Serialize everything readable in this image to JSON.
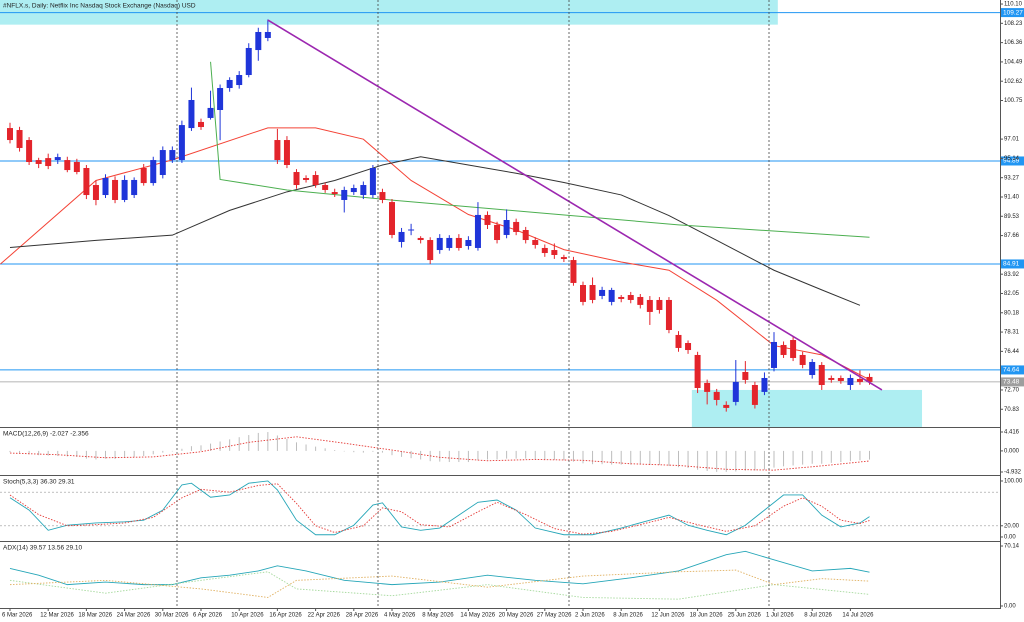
{
  "chart_data": [
    {
      "type": "candlestick",
      "title": "#NFLX.s, Daily:  Netflix Inc Nasdaq Stock Exchange (Nasdaq) USD",
      "categories": [
        "6 Mar 2026",
        null,
        null,
        null,
        "12 Mar 2026",
        null,
        null,
        null,
        "18 Mar 2026",
        null,
        null,
        null,
        "24 Mar 2026",
        null,
        null,
        null,
        "30 Mar 2026",
        null,
        null,
        null,
        "6 Apr 2026",
        null,
        null,
        null,
        "10 Apr 2026",
        null,
        null,
        null,
        "16 Apr 2026",
        null,
        null,
        null,
        "22 Apr 2026",
        null,
        null,
        null,
        "28 Apr 2026",
        null,
        null,
        null,
        "4 May 2026",
        null,
        null,
        null,
        "8 May 2026",
        null,
        null,
        null,
        "14 May 2026",
        null,
        null,
        null,
        "20 May 2026",
        null,
        null,
        null,
        "27 May 2026",
        null,
        null,
        null,
        "2 Jun 2026",
        null,
        null,
        null,
        "8 Jun 2026",
        null,
        null,
        null,
        "12 Jun 2026",
        null,
        null,
        null,
        "18 Jun 2026",
        null,
        null,
        null,
        "25 Jun 2026",
        null,
        null,
        null,
        "1 Jul 2026",
        null,
        null,
        null,
        "8 Jul 2026",
        null,
        null,
        null,
        "14 Jul 2026",
        null,
        null
      ],
      "open": [
        98.08,
        97.89,
        96.92,
        94.98,
        95.17,
        94.98,
        94.98,
        94.79,
        94.21,
        92.56,
        91.59,
        93.05,
        91.11,
        91.59,
        94.21,
        92.75,
        93.53,
        94.98,
        94.98,
        98.08,
        98.67,
        99.06,
        99.83,
        101.96,
        102.25,
        103.22,
        105.64,
        106.81,
        96.92,
        96.92,
        93.82,
        93.24,
        93.53,
        92.56,
        91.88,
        91.11,
        91.88,
        91.59,
        91.59,
        91.88,
        90.91,
        87.04,
        88.2,
        87.43,
        87.23,
        86.26,
        86.46,
        87.43,
        86.65,
        86.46,
        89.66,
        88.69,
        87.72,
        88.98,
        88.2,
        87.23,
        86.46,
        86.26,
        85.58,
        85.29,
        82.87,
        82.87,
        81.81,
        81.23,
        81.71,
        81.9,
        81.71,
        81.42,
        81.42,
        81.42,
        78.03,
        77.25,
        76.09,
        73.38,
        72.51,
        71.25,
        71.54,
        74.44,
        73.18,
        72.51,
        74.83,
        77.06,
        77.54,
        76.09,
        74.15,
        75.12,
        73.86,
        73.86,
        73.18,
        73.76,
        73.96
      ],
      "high": [
        98.6,
        98.2,
        97.2,
        95.2,
        95.6,
        95.6,
        95.3,
        95.1,
        94.5,
        93.0,
        93.6,
        93.4,
        93.5,
        93.3,
        94.6,
        95.3,
        96.3,
        96.3,
        98.8,
        102.0,
        99.0,
        101.7,
        102.3,
        103.0,
        103.6,
        106.3,
        107.8,
        108.6,
        98.0,
        97.3,
        94.1,
        93.5,
        93.9,
        92.8,
        92.2,
        92.4,
        92.6,
        92.9,
        94.5,
        92.2,
        91.2,
        88.4,
        88.8,
        87.6,
        87.5,
        87.8,
        87.7,
        87.8,
        87.6,
        90.9,
        90.0,
        89.0,
        90.2,
        89.3,
        88.5,
        87.5,
        86.8,
        86.9,
        85.8,
        85.6,
        83.2,
        83.6,
        82.7,
        82.6,
        81.9,
        82.2,
        82.0,
        81.8,
        81.7,
        81.7,
        78.4,
        77.5,
        76.4,
        73.7,
        72.8,
        71.6,
        75.6,
        75.5,
        73.5,
        74.4,
        78.3,
        77.4,
        77.9,
        76.4,
        75.7,
        75.4,
        74.1,
        74.1,
        74.2,
        74.6,
        74.3
      ],
      "low": [
        96.6,
        95.8,
        94.5,
        94.2,
        94.1,
        94.6,
        93.8,
        93.6,
        91.2,
        90.6,
        91.3,
        90.8,
        90.9,
        91.3,
        92.5,
        92.5,
        93.2,
        94.7,
        94.7,
        97.8,
        97.9,
        98.9,
        96.9,
        101.6,
        101.9,
        103.0,
        104.6,
        106.5,
        94.6,
        94.2,
        92.2,
        92.8,
        92.3,
        91.8,
        91.4,
        89.9,
        91.6,
        91.2,
        91.3,
        90.8,
        87.4,
        86.5,
        87.7,
        86.9,
        84.9,
        85.9,
        86.2,
        86.2,
        86.3,
        86.2,
        88.3,
        86.9,
        87.4,
        87.7,
        86.9,
        86.4,
        85.6,
        85.4,
        85.1,
        82.8,
        80.9,
        81.1,
        81.5,
        80.9,
        81.2,
        81.1,
        80.6,
        79.0,
        80.1,
        78.2,
        76.4,
        76.2,
        72.4,
        71.3,
        71.2,
        70.6,
        71.2,
        73.3,
        70.9,
        72.2,
        74.5,
        75.8,
        75.5,
        74.8,
        73.8,
        72.7,
        73.4,
        73.3,
        72.7,
        73.2,
        73.2
      ],
      "close": [
        96.92,
        96.15,
        94.79,
        94.6,
        94.4,
        95.27,
        94.01,
        93.82,
        91.59,
        91.11,
        93.24,
        91.11,
        93.05,
        93.05,
        92.75,
        94.98,
        95.95,
        95.95,
        98.37,
        100.8,
        98.18,
        100.03,
        101.96,
        102.74,
        103.22,
        105.84,
        107.39,
        107.39,
        94.98,
        94.5,
        92.56,
        93.05,
        92.56,
        92.08,
        91.69,
        92.08,
        92.27,
        92.56,
        94.21,
        91.11,
        87.72,
        88.01,
        88.25,
        87.23,
        85.29,
        87.43,
        87.43,
        86.46,
        87.23,
        89.66,
        88.69,
        87.23,
        89.17,
        88.01,
        87.23,
        86.75,
        85.97,
        85.78,
        85.39,
        83.07,
        81.23,
        81.42,
        82.39,
        82.39,
        81.52,
        81.42,
        80.94,
        80.26,
        80.45,
        78.51,
        76.77,
        76.57,
        72.89,
        72.51,
        71.73,
        70.96,
        73.48,
        73.67,
        71.25,
        73.86,
        77.35,
        76.09,
        75.8,
        75.12,
        75.41,
        73.18,
        73.67,
        73.57,
        73.86,
        73.48,
        73.48
      ],
      "up_color": "#1f35d9",
      "down_color": "#e3242b",
      "ylim": [
        69.11,
        110.49
      ],
      "yticks": [
        {
          "value": 110.1,
          "label": "110.10"
        },
        {
          "value": 108.23,
          "label": "108.23"
        },
        {
          "value": 106.36,
          "label": "106.36"
        },
        {
          "value": 104.49,
          "label": "104.49"
        },
        {
          "value": 102.62,
          "label": "102.62"
        },
        {
          "value": 100.75,
          "label": "100.75"
        },
        {
          "value": 97.01,
          "label": "97.01"
        },
        {
          "value": 95.14,
          "label": "95.14"
        },
        {
          "value": 93.27,
          "label": "93.27"
        },
        {
          "value": 91.4,
          "label": "91.40"
        },
        {
          "value": 89.53,
          "label": "89.53"
        },
        {
          "value": 87.66,
          "label": "87.66"
        },
        {
          "value": 83.92,
          "label": "83.92"
        },
        {
          "value": 82.05,
          "label": "82.05"
        },
        {
          "value": 80.18,
          "label": "80.18"
        },
        {
          "value": 78.31,
          "label": "78.31"
        },
        {
          "value": 76.44,
          "label": "76.44"
        },
        {
          "value": 72.7,
          "label": "72.70"
        },
        {
          "value": 70.83,
          "label": "70.83"
        }
      ],
      "zones": [
        {
          "x": [
            -1.05,
            80.4
          ],
          "y": [
            110.49,
            108.1
          ]
        },
        {
          "x": [
            71.4,
            95.5
          ],
          "y": [
            72.7,
            69.11
          ]
        }
      ],
      "zone_color": "#aeeef2",
      "hlines": [
        109.27,
        94.89,
        84.91,
        74.64
      ],
      "hline_color": "#2196f3",
      "current_price": 73.48,
      "current_color": "#9e9e9e",
      "lines": [
        {
          "color": "#f44336",
          "x": [
            -1,
            9,
            17,
            27,
            32,
            37,
            42,
            48,
            53,
            58,
            64,
            69,
            74,
            80,
            85,
            90
          ],
          "values": [
            84.9,
            93.0,
            95.0,
            98.1,
            98.1,
            97.0,
            93.0,
            89.7,
            88.2,
            86.3,
            85.1,
            84.3,
            81.4,
            77.0,
            76.1,
            73.7
          ]
        },
        {
          "color": "#333333",
          "x": [
            0,
            9,
            17,
            23,
            29,
            34,
            39,
            43,
            48,
            53,
            58,
            64,
            69,
            74,
            80,
            85,
            89
          ],
          "values": [
            86.5,
            87.2,
            87.7,
            90.1,
            91.9,
            93.0,
            94.5,
            95.3,
            94.5,
            93.7,
            92.8,
            91.6,
            89.6,
            87.2,
            84.3,
            82.4,
            80.9
          ]
        },
        {
          "color": "#4caf50",
          "x": [
            21,
            22,
            29,
            40,
            55,
            70,
            90
          ],
          "values": [
            104.5,
            93.1,
            92.08,
            91.1,
            89.9,
            88.7,
            87.5
          ]
        }
      ],
      "trendline": {
        "color": "#9c27b0",
        "x": [
          27,
          91.3
        ],
        "values": [
          108.55,
          72.7
        ]
      }
    },
    {
      "type": "macd",
      "title": "MACD(12,26,9) -2.027 -2.356",
      "values": [
        -0.3,
        -0.5,
        -0.8,
        -1.0,
        -1.1,
        -1.2,
        -1.3,
        -1.4,
        -1.8,
        -2.0,
        -1.8,
        -1.9,
        -1.6,
        -1.4,
        -1.2,
        -0.8,
        -0.4,
        0,
        0.5,
        1.1,
        1.3,
        1.7,
        2.2,
        2.7,
        3.2,
        3.7,
        4.2,
        4.4,
        3.6,
        2.8,
        2.0,
        1.5,
        1.0,
        0.6,
        0.2,
        -0.1,
        -0.3,
        -0.4,
        -0.2,
        -0.4,
        -1.0,
        -1.4,
        -1.7,
        -2.0,
        -2.4,
        -2.5,
        -2.6,
        -2.6,
        -2.6,
        -2.2,
        -2.0,
        -2.0,
        -1.8,
        -1.8,
        -1.8,
        -1.9,
        -2.0,
        -2.1,
        -2.2,
        -2.5,
        -2.9,
        -3.1,
        -3.1,
        -3.2,
        -3.2,
        -3.2,
        -3.2,
        -3.3,
        -3.3,
        -3.5,
        -3.8,
        -4.0,
        -4.4,
        -4.7,
        -4.9,
        -4.9,
        -4.8,
        -4.6,
        -4.6,
        -4.4,
        -3.9,
        -3.6,
        -3.4,
        -3.2,
        -3.0,
        -3.0,
        -2.8,
        -2.6,
        -2.4,
        -2.2,
        -2.027
      ],
      "color": "#bdbdbd",
      "signal": {
        "color": "#e53935",
        "x": [
          0,
          5,
          10,
          15,
          20,
          25,
          30,
          35,
          40,
          45,
          50,
          55,
          60,
          65,
          70,
          75,
          80,
          85,
          90
        ],
        "values": [
          -0.5,
          -0.9,
          -1.6,
          -1.4,
          -0.2,
          2.0,
          3.3,
          1.8,
          0.2,
          -1.5,
          -2.3,
          -2.0,
          -2.2,
          -3.0,
          -3.4,
          -4.3,
          -4.5,
          -3.5,
          -2.356
        ]
      },
      "ylim": [
        -5.63,
        5.35
      ],
      "yticks": [
        4.416,
        {
          "value": 0,
          "label": "0.000"
        },
        -4.932
      ]
    },
    {
      "type": "line",
      "title": "Stoch(5,3,3) 36.30 29.31",
      "series": [
        {
          "color": "#26a6b8",
          "dotted": false,
          "x": [
            0,
            2,
            4,
            6,
            9,
            12,
            14,
            16,
            18,
            19,
            21,
            23,
            25,
            27,
            28,
            30,
            32,
            34,
            36,
            38,
            39,
            41,
            43,
            45,
            47,
            49,
            51,
            53,
            55,
            58,
            61,
            64,
            67,
            69,
            71,
            73,
            75,
            77,
            79,
            81,
            83,
            85,
            87,
            89,
            90
          ],
          "values": [
            70,
            48,
            12,
            21,
            25,
            27,
            30,
            48,
            93,
            96,
            71,
            75,
            96,
            100,
            84,
            30,
            4,
            4,
            21,
            57,
            61,
            18,
            12,
            16,
            39,
            62,
            66,
            48,
            16,
            4,
            4,
            16,
            30,
            39,
            21,
            12,
            4,
            21,
            48,
            75,
            75,
            39,
            18,
            25,
            36.3
          ]
        },
        {
          "color": "#e53935",
          "dotted": true,
          "x": [
            0,
            3,
            6,
            9,
            12,
            15,
            18,
            20,
            23,
            26,
            28,
            30,
            32,
            34,
            37,
            39,
            41,
            43,
            46,
            49,
            51,
            54,
            57,
            60,
            63,
            66,
            69,
            72,
            75,
            78,
            81,
            83,
            85,
            87,
            89,
            90
          ],
          "values": [
            75,
            40,
            20,
            22,
            25,
            35,
            70,
            85,
            80,
            92,
            95,
            60,
            20,
            8,
            20,
            52,
            45,
            22,
            18,
            45,
            62,
            40,
            15,
            5,
            10,
            22,
            35,
            22,
            10,
            20,
            55,
            70,
            55,
            30,
            24,
            29.31
          ]
        }
      ],
      "levels": [
        80,
        20
      ],
      "ylim": [
        -5.4,
        108.9
      ],
      "yticks": [
        {
          "value": 100,
          "label": "100.00"
        },
        {
          "value": 20,
          "label": "20.00"
        },
        {
          "value": 0,
          "label": "0.00"
        }
      ]
    },
    {
      "type": "line",
      "title": "ADX(14) 39.57 13.56 29.10",
      "series": [
        {
          "color": "#26a6b8",
          "dotted": false,
          "x": [
            0,
            3,
            6,
            10,
            14,
            17,
            20,
            23,
            26,
            28,
            31,
            35,
            40,
            45,
            50,
            55,
            60,
            65,
            70,
            75,
            77,
            80,
            84,
            88,
            90
          ],
          "values": [
            44,
            36,
            25,
            28,
            25,
            25,
            33,
            36,
            41,
            47,
            41,
            30,
            25,
            28,
            36,
            30,
            26,
            33,
            41,
            60,
            64,
            54,
            41,
            44,
            39.57
          ]
        },
        {
          "color": "#a5d99c",
          "dotted": true,
          "x": [
            0,
            10,
            20,
            27,
            30,
            40,
            50,
            60,
            70,
            80,
            90
          ],
          "values": [
            30,
            15,
            30,
            40,
            20,
            12,
            25,
            10,
            8,
            25,
            13.56
          ]
        },
        {
          "color": "#e0b060",
          "dotted": true,
          "x": [
            0,
            10,
            20,
            27,
            30,
            40,
            50,
            60,
            70,
            76,
            80,
            85,
            90
          ],
          "values": [
            25,
            30,
            20,
            10,
            30,
            35,
            22,
            35,
            40,
            42,
            25,
            32,
            29.1
          ]
        }
      ],
      "ylim": [
        -2.34,
        74.85
      ],
      "yticks": [
        70.14,
        {
          "value": 0,
          "label": "0.00"
        }
      ]
    }
  ]
}
